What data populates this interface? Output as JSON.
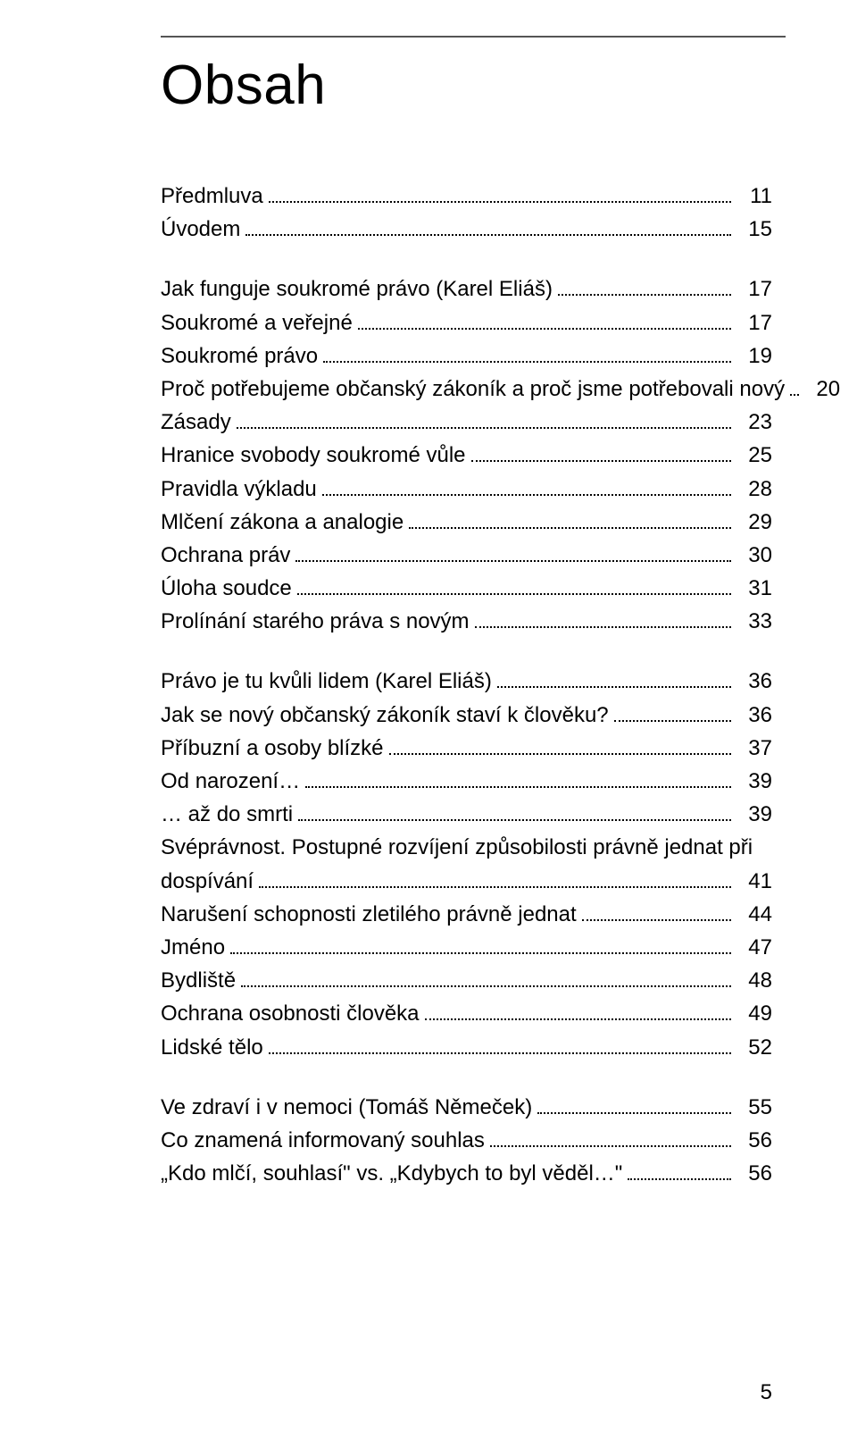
{
  "title": "Obsah",
  "page_number": "5",
  "colors": {
    "text": "#000000",
    "background": "#ffffff",
    "rule": "#555555"
  },
  "typography": {
    "title_fontsize": 62,
    "body_fontsize": 24,
    "font_family": "Arial"
  },
  "sections": [
    {
      "gap_before": false,
      "items": [
        {
          "label": "Předmluva",
          "bold": false,
          "page": "11"
        },
        {
          "label": "Úvodem",
          "bold": false,
          "page": "15"
        }
      ]
    },
    {
      "gap_before": true,
      "items": [
        {
          "label": "Jak funguje soukromé právo",
          "author": " (Karel Eliáš)",
          "bold": true,
          "page": "17"
        },
        {
          "label": "Soukromé a veřejné",
          "bold": false,
          "page": "17"
        },
        {
          "label": "Soukromé právo",
          "bold": false,
          "page": "19"
        },
        {
          "label": "Proč potřebujeme občanský zákoník a proč jsme potřebovali nový",
          "bold": false,
          "page": "20"
        },
        {
          "label": "Zásady",
          "bold": false,
          "page": "23"
        },
        {
          "label": "Hranice svobody soukromé vůle",
          "bold": false,
          "page": "25"
        },
        {
          "label": "Pravidla výkladu",
          "bold": false,
          "page": "28"
        },
        {
          "label": "Mlčení zákona a analogie",
          "bold": false,
          "page": "29"
        },
        {
          "label": "Ochrana práv",
          "bold": false,
          "page": "30"
        },
        {
          "label": "Úloha soudce",
          "bold": false,
          "page": "31"
        },
        {
          "label": "Prolínání starého práva s novým",
          "bold": false,
          "page": "33"
        }
      ]
    },
    {
      "gap_before": true,
      "items": [
        {
          "label": "Právo je tu kvůli lidem",
          "author": " (Karel Eliáš)",
          "bold": true,
          "page": "36"
        },
        {
          "label": "Jak se nový občanský zákoník staví k člověku?",
          "bold": false,
          "page": "36"
        },
        {
          "label": "Příbuzní a osoby blízké",
          "bold": false,
          "page": "37"
        },
        {
          "label": "Od narození…",
          "bold": false,
          "page": "39"
        },
        {
          "label": "… až do smrti",
          "bold": false,
          "page": "39"
        },
        {
          "label": "Svéprávnost. Postupné rozvíjení způsobilosti právně jednat při dospívání",
          "bold": false,
          "page": "41"
        },
        {
          "label": "Narušení schopnosti zletilého právně jednat",
          "bold": false,
          "page": "44"
        },
        {
          "label": "Jméno",
          "bold": false,
          "page": "47"
        },
        {
          "label": "Bydliště",
          "bold": false,
          "page": "48"
        },
        {
          "label": "Ochrana osobnosti člověka",
          "bold": false,
          "page": "49"
        },
        {
          "label": "Lidské tělo",
          "bold": false,
          "page": "52"
        }
      ]
    },
    {
      "gap_before": true,
      "items": [
        {
          "label": "Ve zdraví i v nemoci",
          "author": " (Tomáš Němeček)",
          "bold": true,
          "page": "55"
        },
        {
          "label": "Co znamená informovaný souhlas",
          "bold": false,
          "page": "56"
        },
        {
          "label": "„Kdo mlčí, souhlasí\" vs. „Kdybych to byl věděl…\"",
          "bold": false,
          "page": "56"
        }
      ]
    }
  ]
}
